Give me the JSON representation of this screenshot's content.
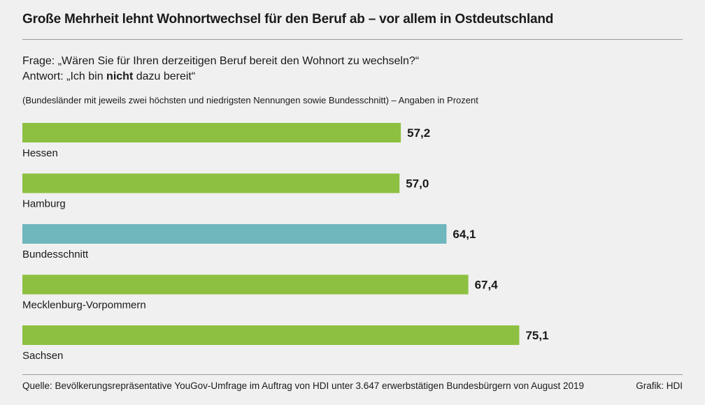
{
  "title": "Große Mehrheit lehnt Wohnortwechsel für den Beruf ab – vor allem in Ostdeutschland",
  "question": "Frage: „Wären Sie für Ihren derzeitigen Beruf bereit den Wohnort zu wechseln?“",
  "answer": {
    "prefix": "Antwort: „Ich bin ",
    "emphasis": "nicht",
    "suffix": " dazu bereit“"
  },
  "note": "(Bundesländer mit jeweils zwei höchsten und niedrigsten Nennungen sowie Bundesschnitt) – Angaben in Prozent",
  "source": "Quelle: Bevölkerungsrepräsentative YouGov-Umfrage im Auftrag von HDI unter 3.647 erwerbstätigen Bundesbürgern von August 2019",
  "credit": "Grafik: HDI",
  "colors": {
    "state_bar": "#8dc041",
    "average_bar": "#6fb6bd",
    "background": "#f0f0f0"
  },
  "chart_data": {
    "type": "bar",
    "orientation": "horizontal",
    "unit": "%",
    "grid": false,
    "categories": [
      "Hessen",
      "Hamburg",
      "Bundesschnitt",
      "Mecklenburg-Vorpommern",
      "Sachsen"
    ],
    "values": [
      57.2,
      57.0,
      64.1,
      67.4,
      75.1
    ],
    "value_labels": [
      "57,2",
      "57,0",
      "64,1",
      "67,4",
      "75,1"
    ],
    "highlight": [
      "state",
      "state",
      "average",
      "state",
      "state"
    ],
    "xlim": [
      0,
      100
    ]
  }
}
